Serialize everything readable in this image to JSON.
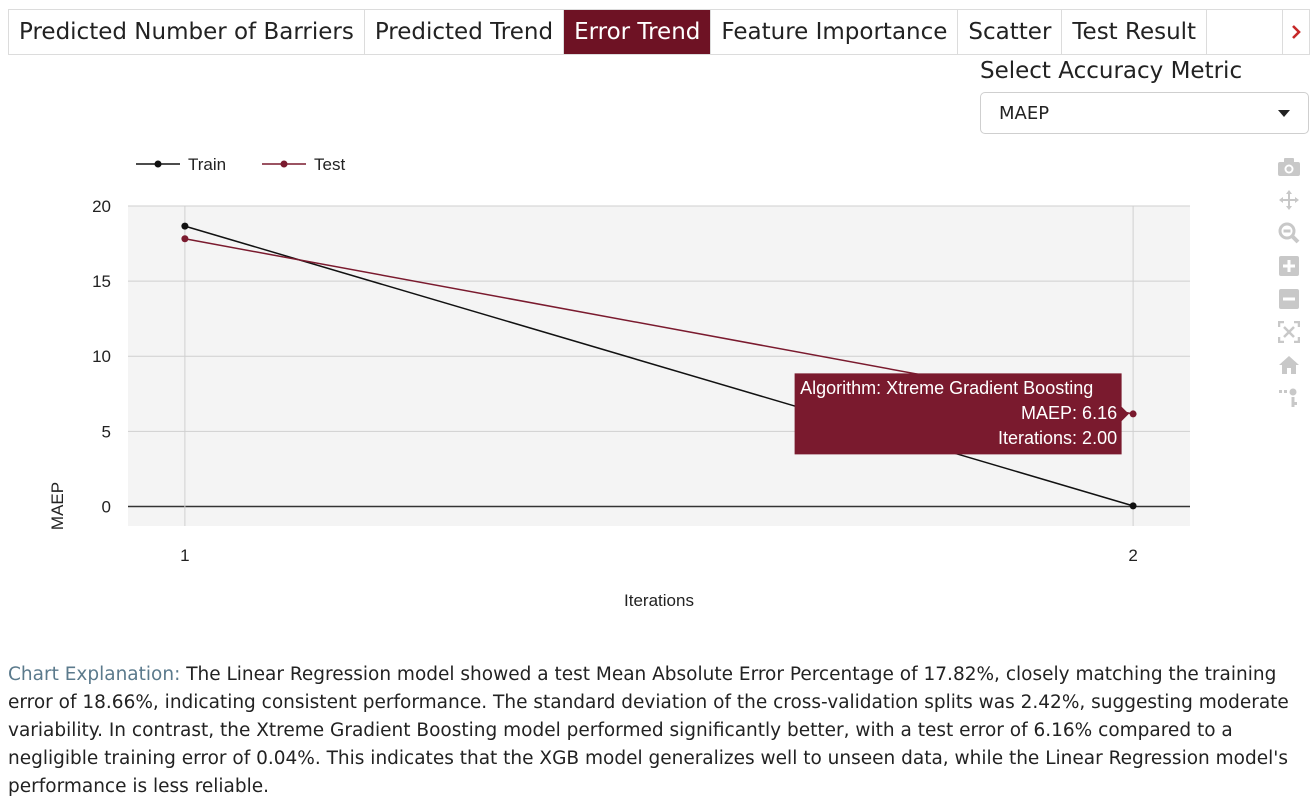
{
  "tabs": [
    {
      "label": "Predicted Number of Barriers",
      "active": false
    },
    {
      "label": "Predicted Trend",
      "active": false
    },
    {
      "label": "Error Trend",
      "active": true
    },
    {
      "label": "Feature Importance",
      "active": false
    },
    {
      "label": "Scatter",
      "active": false
    },
    {
      "label": "Test Result",
      "active": false
    }
  ],
  "metric_selector": {
    "label": "Select Accuracy Metric",
    "value": "MAEP",
    "icon": "chevron-down-icon"
  },
  "modebar": [
    "camera-icon",
    "pan-icon",
    "zoom-icon",
    "zoom-in-icon",
    "zoom-out-icon",
    "autoscale-icon",
    "home-icon",
    "hover-icon"
  ],
  "colors": {
    "accent": "#6e1224",
    "train": "#111111",
    "test": "#7a1a2e"
  },
  "chart_data": {
    "type": "line",
    "xlabel": "Iterations",
    "ylabel": "MAEP",
    "x_ticks": [
      "1",
      "2"
    ],
    "y_ticks": [
      "0",
      "5",
      "10",
      "15",
      "20"
    ],
    "xlim": [
      0.94,
      2.06
    ],
    "ylim": [
      -1.3,
      20
    ],
    "legend_position": "top-left",
    "grid": true,
    "series": [
      {
        "name": "Train",
        "x": [
          1,
          2
        ],
        "y": [
          18.66,
          0.04
        ],
        "color": "#111111"
      },
      {
        "name": "Test",
        "x": [
          1,
          2
        ],
        "y": [
          17.82,
          6.16
        ],
        "color": "#7a1a2e"
      }
    ],
    "tooltip": {
      "series": "Test",
      "x": 2,
      "y": 6.16,
      "lines": [
        "Algorithm: Xtreme Gradient Boosting",
        "MAEP: 6.16",
        "Iterations: 2.00"
      ]
    }
  },
  "explanation": {
    "label": "Chart Explanation:",
    "text": " The Linear Regression model showed a test Mean Absolute Error Percentage of 17.82%, closely matching the training error of 18.66%, indicating consistent performance. The standard deviation of the cross-validation splits was 2.42%, suggesting moderate variability. In contrast, the Xtreme Gradient Boosting model performed significantly better, with a test error of 6.16% compared to a negligible training error of 0.04%. This indicates that the XGB model generalizes well to unseen data, while the Linear Regression model's performance is less reliable."
  }
}
